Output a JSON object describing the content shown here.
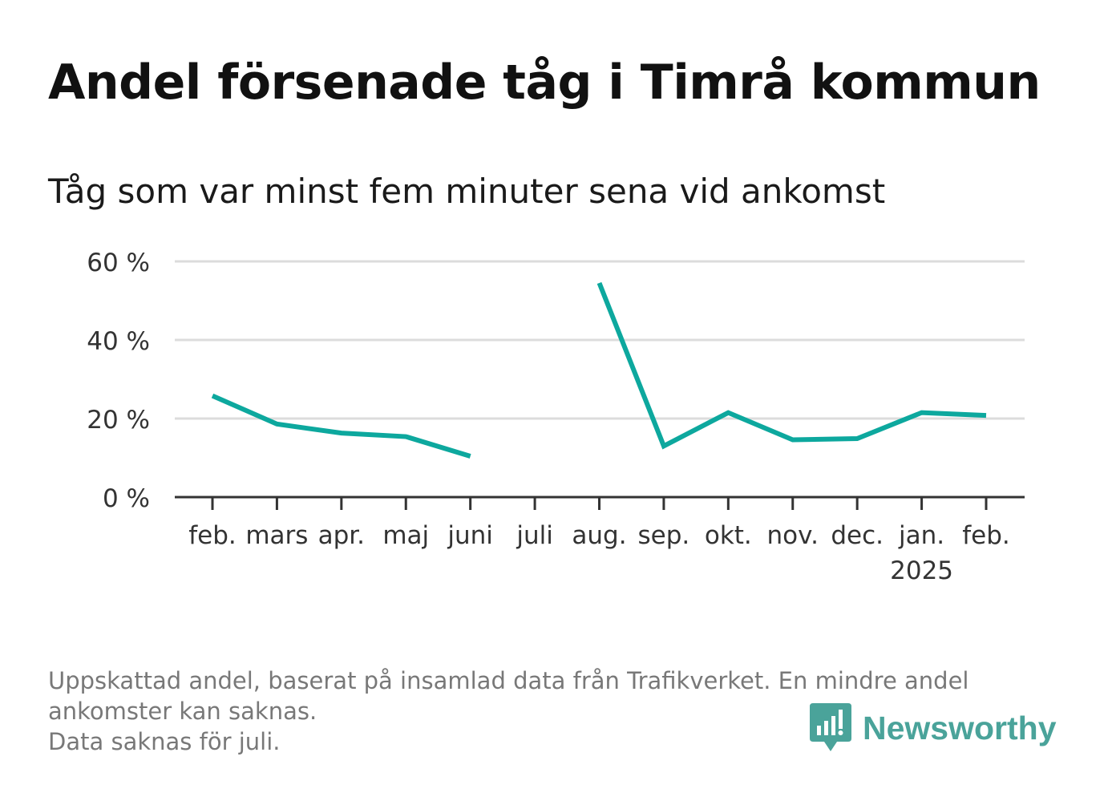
{
  "title": "Andel försenade tåg i Timrå kommun",
  "subtitle": "Tåg som var minst fem minuter sena vid ankomst",
  "notes": [
    "Uppskattad andel, baserat på insamlad data från Trafikverket. En mindre andel",
    "ankomster kan saknas.",
    "Data saknas för juli."
  ],
  "brand": {
    "name": "Newsworthy",
    "icon": "newsworthy-logo-icon",
    "color": "#4aa39a"
  },
  "chart_data": {
    "type": "line",
    "categories": [
      "feb.",
      "mars",
      "apr.",
      "maj",
      "juni",
      "juli",
      "aug.",
      "sep.",
      "okt.",
      "nov.",
      "dec.",
      "jan.",
      "feb."
    ],
    "category_sublabels": [
      "",
      "",
      "",
      "",
      "",
      "",
      "",
      "",
      "",
      "",
      "",
      "2025",
      ""
    ],
    "series": [
      {
        "values": [
          25.8,
          18.6,
          16.3,
          15.4,
          10.4,
          null,
          54.5,
          13.0,
          21.5,
          14.6,
          14.9,
          21.5,
          20.8
        ],
        "color": "#0da89e"
      }
    ],
    "yticks": [
      0,
      20,
      40,
      60
    ],
    "ytick_labels": [
      "0 %",
      "20 %",
      "40 %",
      "60 %"
    ],
    "ylim": [
      0,
      60
    ],
    "grid": true,
    "xlabel": "",
    "ylabel": ""
  }
}
